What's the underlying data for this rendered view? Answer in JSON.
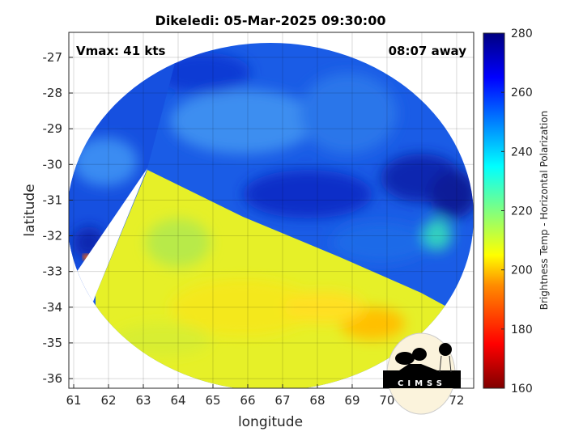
{
  "chart_data": {
    "type": "heatmap",
    "title": "Dikeledi: 05-Mar-2025 09:30:00",
    "xlabel": "longitude",
    "ylabel": "latitude",
    "xlim": [
      60.86,
      72.49
    ],
    "ylim": [
      -36.27,
      -26.3
    ],
    "xticks": [
      "61",
      "62",
      "63",
      "64",
      "65",
      "66",
      "67",
      "68",
      "69",
      "70",
      "71",
      "72"
    ],
    "yticks": [
      "-27",
      "-28",
      "-29",
      "-30",
      "-31",
      "-32",
      "-33",
      "-34",
      "-35",
      "-36"
    ],
    "grid": true,
    "annotations": {
      "vmax": "Vmax: 41 kts",
      "time_offset": "08:07 away"
    },
    "colorbar": {
      "label": "Brightness Temp - Horizontal Polarization",
      "range": [
        160,
        280
      ],
      "ticks": [
        "160",
        "180",
        "200",
        "220",
        "240",
        "260",
        "280"
      ],
      "colormap": "jet"
    },
    "field_summary": {
      "cold_region": "yellow band ~200-215 K in southwest/south of image",
      "warm_region": "blue ~245-270 K across north and east"
    }
  },
  "logo": {
    "text": "CIMSS"
  }
}
